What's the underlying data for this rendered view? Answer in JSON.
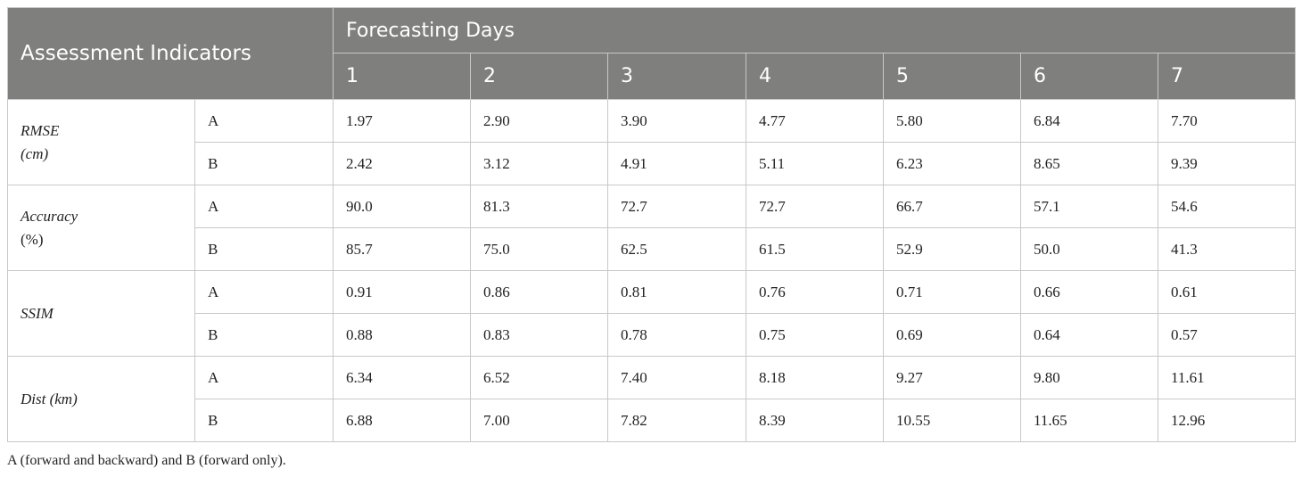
{
  "table": {
    "header_indicator": "Assessment Indicators",
    "header_group": "Forecasting Days",
    "days": [
      "1",
      "2",
      "3",
      "4",
      "5",
      "6",
      "7"
    ],
    "rows": [
      {
        "metric_line1": "RMSE",
        "metric_line2": "(cm)",
        "variants": [
          {
            "label": "A",
            "values": [
              "1.97",
              "2.90",
              "3.90",
              "4.77",
              "5.80",
              "6.84",
              "7.70"
            ]
          },
          {
            "label": "B",
            "values": [
              "2.42",
              "3.12",
              "4.91",
              "5.11",
              "6.23",
              "8.65",
              "9.39"
            ]
          }
        ]
      },
      {
        "metric_line1": "Accuracy",
        "metric_line2": "(%)",
        "variants": [
          {
            "label": "A",
            "values": [
              "90.0",
              "81.3",
              "72.7",
              "72.7",
              "66.7",
              "57.1",
              "54.6"
            ]
          },
          {
            "label": "B",
            "values": [
              "85.7",
              "75.0",
              "62.5",
              "61.5",
              "52.9",
              "50.0",
              "41.3"
            ]
          }
        ]
      },
      {
        "metric_line1": "SSIM",
        "metric_line2": "",
        "variants": [
          {
            "label": "A",
            "values": [
              "0.91",
              "0.86",
              "0.81",
              "0.76",
              "0.71",
              "0.66",
              "0.61"
            ]
          },
          {
            "label": "B",
            "values": [
              "0.88",
              "0.83",
              "0.78",
              "0.75",
              "0.69",
              "0.64",
              "0.57"
            ]
          }
        ]
      },
      {
        "metric_line1": "Dist (km)",
        "metric_line2": "",
        "variants": [
          {
            "label": "A",
            "values": [
              "6.34",
              "6.52",
              "7.40",
              "8.18",
              "9.27",
              "9.80",
              "11.61"
            ]
          },
          {
            "label": "B",
            "values": [
              "6.88",
              "7.00",
              "7.82",
              "8.39",
              "10.55",
              "11.65",
              "12.96"
            ]
          }
        ]
      }
    ]
  },
  "footnote": "A (forward and backward) and B (forward only)."
}
